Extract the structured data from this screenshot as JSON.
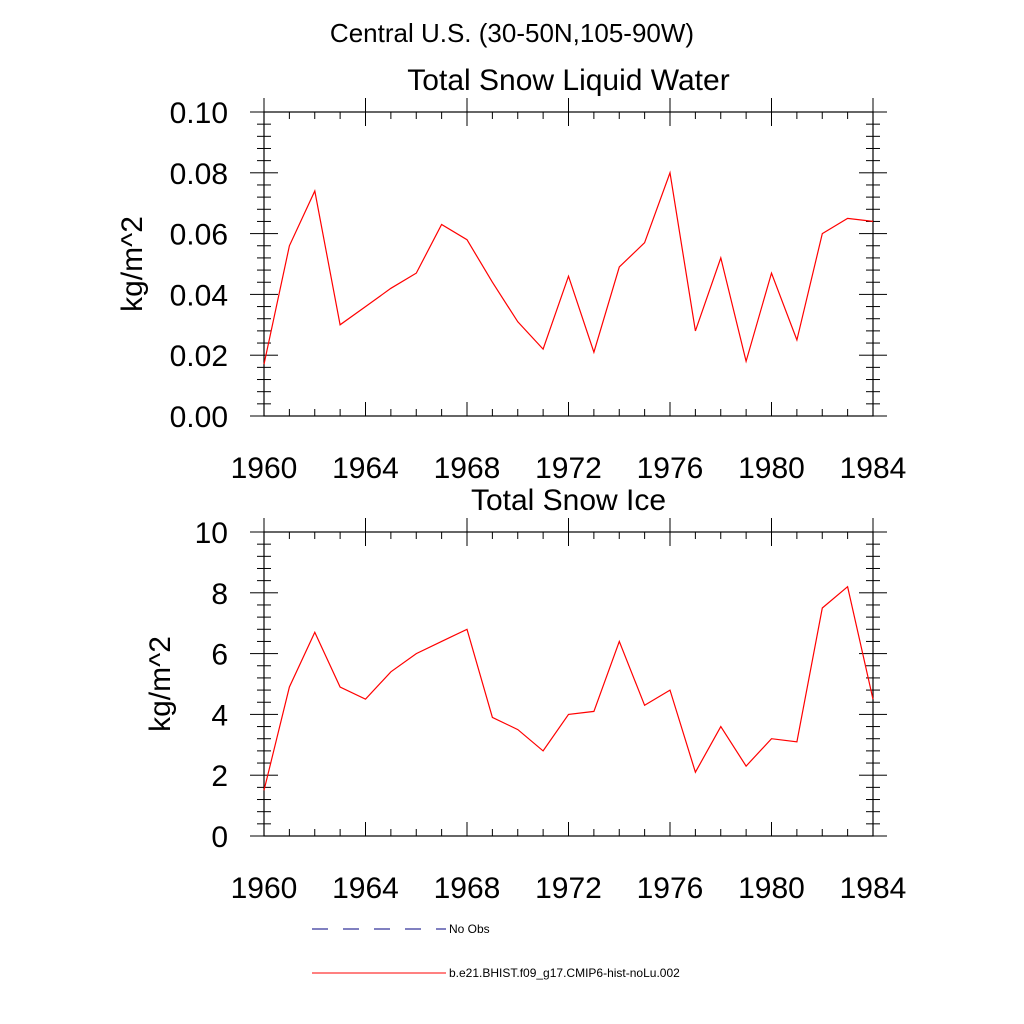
{
  "suptitle": "Central U.S. (30-50N,105-90W)",
  "legend": {
    "items": [
      {
        "label": "No Obs",
        "style": "dashed",
        "color": "#000080"
      },
      {
        "label": "b.e21.BHIST.f09_g17.CMIP6-hist-noLu.002",
        "style": "solid",
        "color": "#ff0000"
      }
    ]
  },
  "chart_data": [
    {
      "type": "line",
      "title": "Total Snow Liquid Water",
      "xlabel": "",
      "ylabel": "kg/m^2",
      "xlim": [
        1960,
        1984
      ],
      "ylim": [
        0,
        0.1
      ],
      "xticks": [
        "1960",
        "1964",
        "1968",
        "1972",
        "1976",
        "1980",
        "1984"
      ],
      "yticks": [
        "0.00",
        "0.02",
        "0.04",
        "0.06",
        "0.08",
        "0.10"
      ],
      "grid": false,
      "x": [
        1960,
        1961,
        1962,
        1963,
        1964,
        1965,
        1966,
        1967,
        1968,
        1969,
        1970,
        1971,
        1972,
        1973,
        1974,
        1975,
        1976,
        1977,
        1978,
        1979,
        1980,
        1981,
        1982,
        1983,
        1984
      ],
      "series": [
        {
          "name": "b.e21.BHIST.f09_g17.CMIP6-hist-noLu.002",
          "color": "#ff0000",
          "values": [
            0.017,
            0.056,
            0.074,
            0.03,
            0.036,
            0.042,
            0.047,
            0.063,
            0.058,
            0.044,
            0.031,
            0.022,
            0.046,
            0.021,
            0.049,
            0.057,
            0.08,
            0.028,
            0.052,
            0.018,
            0.047,
            0.025,
            0.06,
            0.065,
            0.064
          ]
        }
      ]
    },
    {
      "type": "line",
      "title": "Total Snow Ice",
      "xlabel": "",
      "ylabel": "kg/m^2",
      "xlim": [
        1960,
        1984
      ],
      "ylim": [
        0,
        10
      ],
      "xticks": [
        "1960",
        "1964",
        "1968",
        "1972",
        "1976",
        "1980",
        "1984"
      ],
      "yticks": [
        "0",
        "2",
        "4",
        "6",
        "8",
        "10"
      ],
      "grid": false,
      "x": [
        1960,
        1961,
        1962,
        1963,
        1964,
        1965,
        1966,
        1967,
        1968,
        1969,
        1970,
        1971,
        1972,
        1973,
        1974,
        1975,
        1976,
        1977,
        1978,
        1979,
        1980,
        1981,
        1982,
        1983,
        1984
      ],
      "series": [
        {
          "name": "b.e21.BHIST.f09_g17.CMIP6-hist-noLu.002",
          "color": "#ff0000",
          "values": [
            1.5,
            4.9,
            6.7,
            4.9,
            4.5,
            5.4,
            6.0,
            6.4,
            6.8,
            3.9,
            3.5,
            2.8,
            4.0,
            4.1,
            6.4,
            4.3,
            4.8,
            2.1,
            3.6,
            2.3,
            3.2,
            3.1,
            7.5,
            8.2,
            4.5
          ]
        }
      ]
    }
  ]
}
